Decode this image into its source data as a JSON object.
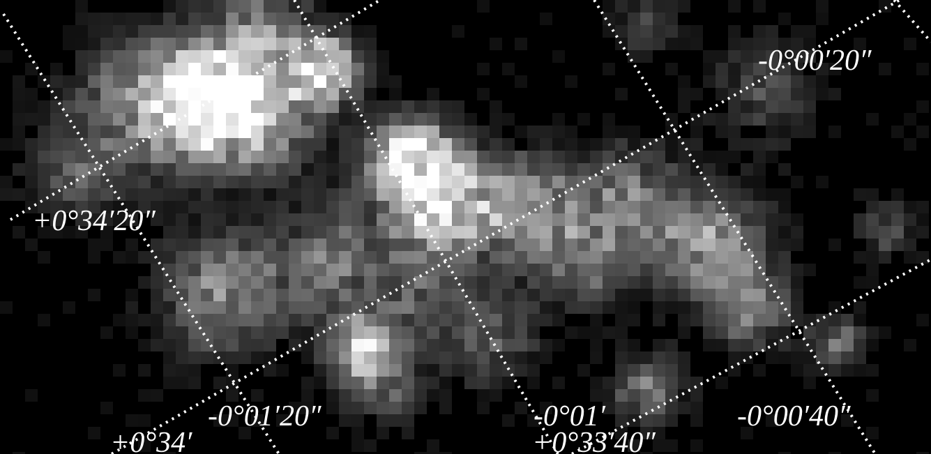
{
  "axis_labels": {
    "latitude": [
      "+0°34′20″",
      "+0°34′",
      "+0°33′40″"
    ],
    "longitude": [
      "-0°01′20″",
      "-0°01′",
      "-0°00′40″",
      "-0°00′20″"
    ]
  }
}
